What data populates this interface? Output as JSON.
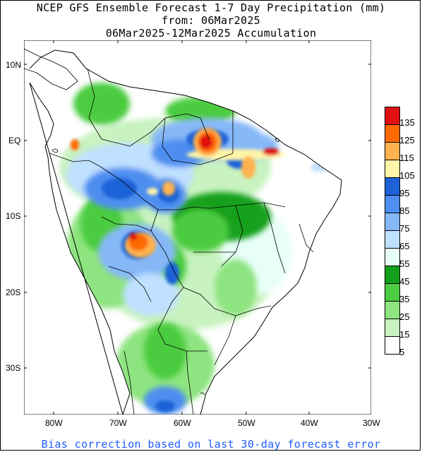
{
  "title": {
    "line1": "NCEP GFS Ensemble Forecast 1-7 Day Precipitation (mm)",
    "line2": "from: 06Mar2025",
    "line3": "06Mar2025-12Mar2025 Accumulation"
  },
  "footer": "Bias correction based on last 30-day forecast error",
  "axes": {
    "lat_labels": [
      "10N",
      "EQ",
      "10S",
      "20S",
      "30S"
    ],
    "lon_labels": [
      "80W",
      "70W",
      "60W",
      "50W",
      "40W",
      "30W"
    ]
  },
  "legend": {
    "labels": [
      "135",
      "125",
      "115",
      "105",
      "95",
      "85",
      "75",
      "65",
      "55",
      "45",
      "35",
      "25",
      "15",
      "5"
    ],
    "colors": [
      "#e01010",
      "#ff6a00",
      "#ffb24d",
      "#fff5a8",
      "#1e62d8",
      "#4e8ef0",
      "#86b8f8",
      "#bfe0ff",
      "#e8fff8",
      "#12a01a",
      "#4ccc40",
      "#8ee480",
      "#c8f2c0",
      "#ffffff"
    ]
  },
  "colors": {
    "footer_text": "#1e5cff",
    "coastline": "#000000",
    "border": "#000000"
  }
}
